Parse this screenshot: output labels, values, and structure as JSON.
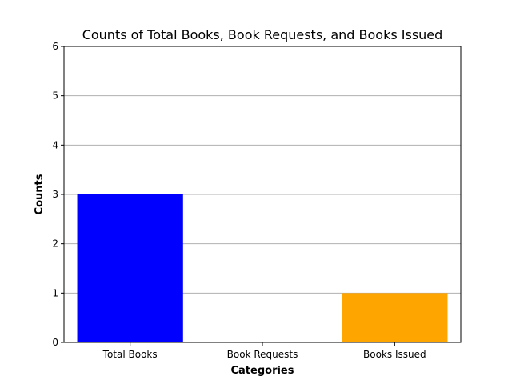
{
  "chart_data": {
    "type": "bar",
    "title": "Counts of Total Books, Book Requests, and Books Issued",
    "xlabel": "Categories",
    "ylabel": "Counts",
    "categories": [
      "Total Books",
      "Book Requests",
      "Books Issued"
    ],
    "values": [
      3,
      0,
      1
    ],
    "colors": [
      "#0000ff",
      "#008000",
      "#ffa500"
    ],
    "ylim": [
      0,
      6
    ],
    "yticks": [
      "0",
      "1",
      "2",
      "3",
      "4",
      "5",
      "6"
    ],
    "grid": "y",
    "legend": "none"
  }
}
